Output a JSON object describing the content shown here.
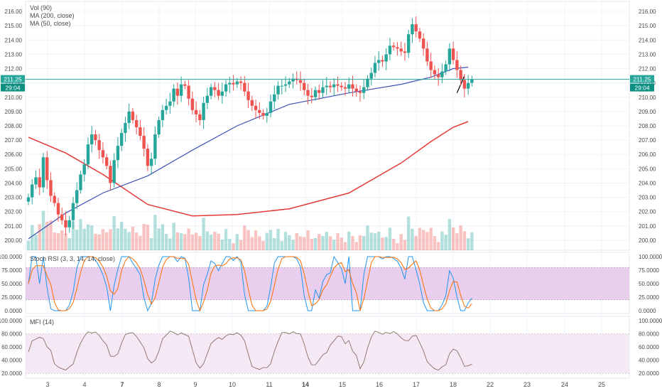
{
  "chart_data": [
    {
      "type": "candlestick",
      "panel": "price",
      "legend": [
        "Vol (90)",
        "MA (200, close)",
        "MA (50, close)"
      ],
      "price_axis_ticks": [
        "216.00",
        "215.00",
        "214.00",
        "213.00",
        "212.00",
        "211.00",
        "210.00",
        "209.00",
        "208.00",
        "207.00",
        "206.00",
        "205.00",
        "204.00",
        "203.00",
        "202.00",
        "201.00",
        "200.00"
      ],
      "ylim": [
        199.5,
        216.3
      ],
      "last_price_label": "211.25",
      "countdown_label": "29:04",
      "last_price": 211.25,
      "x_labels": [
        "3",
        "4",
        "7",
        "8",
        "9",
        "10",
        "11",
        "14",
        "15",
        "16",
        "17",
        "18",
        "22",
        "23",
        "24",
        "25"
      ],
      "x_bold": [
        "7",
        "14"
      ],
      "candles_close": [
        203.0,
        203.9,
        204.4,
        203.7,
        205.8,
        204.2,
        203.1,
        202.6,
        201.8,
        201.4,
        200.9,
        201.4,
        202.6,
        203.5,
        204.6,
        205.3,
        206.7,
        207.4,
        207.0,
        206.3,
        205.8,
        205.2,
        204.0,
        205.6,
        206.6,
        207.5,
        208.2,
        209.0,
        208.4,
        207.9,
        207.3,
        206.4,
        205.2,
        205.7,
        207.4,
        208.4,
        209.1,
        209.4,
        209.7,
        210.6,
        210.1,
        210.9,
        210.8,
        209.9,
        209.1,
        208.8,
        208.4,
        209.6,
        210.1,
        210.7,
        210.5,
        210.1,
        210.4,
        210.9,
        211.0,
        210.9,
        211.1,
        211.0,
        210.4,
        209.8,
        209.4,
        209.1,
        208.9,
        208.7,
        208.9,
        209.7,
        210.2,
        210.8,
        210.8,
        210.9,
        211.1,
        211.3,
        211.2,
        211.0,
        210.5,
        210.1,
        210.0,
        210.5,
        210.3,
        210.7,
        210.8,
        210.7,
        210.9,
        210.8,
        210.7,
        210.6,
        210.9,
        210.6,
        210.4,
        210.3,
        210.7,
        211.3,
        211.7,
        212.4,
        212.6,
        212.5,
        213.0,
        213.6,
        213.5,
        213.4,
        213.2,
        213.1,
        214.4,
        215.1,
        214.6,
        214.1,
        213.4,
        212.5,
        211.9,
        211.6,
        211.4,
        211.8,
        212.3,
        213.4,
        212.6,
        211.9,
        211.2,
        210.6,
        211.0,
        211.25
      ],
      "candles_open_first": 202.7,
      "ma50": [
        [
          0,
          200.1
        ],
        [
          10,
          201.9
        ],
        [
          20,
          203.3
        ],
        [
          32,
          204.5
        ],
        [
          44,
          206.3
        ],
        [
          56,
          208.0
        ],
        [
          70,
          209.5
        ],
        [
          86,
          210.3
        ],
        [
          100,
          210.9
        ],
        [
          108,
          211.4
        ],
        [
          114,
          212.0
        ],
        [
          118,
          212.1
        ]
      ],
      "ma200": [
        [
          0,
          207.2
        ],
        [
          10,
          206.1
        ],
        [
          20,
          204.6
        ],
        [
          32,
          202.5
        ],
        [
          44,
          201.7
        ],
        [
          56,
          201.8
        ],
        [
          70,
          202.2
        ],
        [
          86,
          203.3
        ],
        [
          100,
          205.4
        ],
        [
          108,
          206.9
        ],
        [
          114,
          207.9
        ],
        [
          118,
          208.3
        ]
      ],
      "trendline": [
        [
          115,
          210.3
        ],
        [
          117,
          211.5
        ]
      ]
    },
    {
      "type": "bar",
      "panel": "volume",
      "vol_ma_label": "Vol (90)"
    },
    {
      "type": "line",
      "panel": "stoch_rsi",
      "title": "Stoch RSI (3, 3, 14, 14, close)",
      "ylim": [
        0,
        100
      ],
      "ticks": [
        "100.0000",
        "75.0000",
        "50.0000",
        "25.0000",
        "0.0000"
      ],
      "band": [
        20,
        80
      ],
      "colors": {
        "k": "#2196f3",
        "d": "#ff6d00",
        "band": "#e1bee7"
      }
    },
    {
      "type": "line",
      "panel": "mfi",
      "title": "MFI (14)",
      "ylim": [
        17,
        100
      ],
      "ticks": [
        "100.0000",
        "80.0000",
        "60.0000",
        "40.0000",
        "20.0000"
      ],
      "band": [
        20,
        80
      ],
      "colors": {
        "line": "#8d6e63",
        "band": "#f3e5f5"
      }
    }
  ],
  "colors": {
    "up": "#26a69a",
    "down": "#ef5350",
    "ma50": "#3f51b5",
    "ma200": "#e53935",
    "last_line": "#26a69a",
    "grid": "#f0f3fa",
    "axis_text": "#4a4a4a"
  }
}
